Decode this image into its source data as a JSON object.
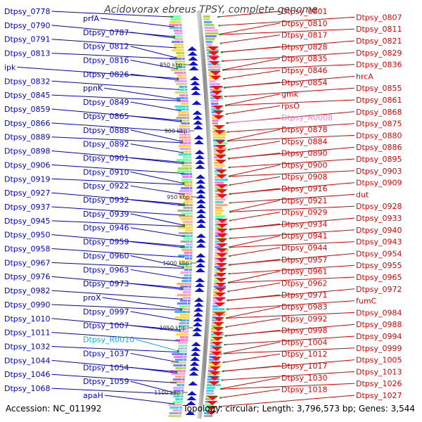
{
  "title": "Acidovorax ebreus TPSY, complete genome",
  "accession": "Accession: NC_011992",
  "summary": "Topology: circular; Length: 3,796,573 bp; Genes: 3,544",
  "colors": {
    "left_label": "#0000cc",
    "right_label": "#dd0000",
    "rna_left": "#00b8d8",
    "rna_right": "#ee88cc",
    "backbone": "#999999",
    "plus_arrow": "#1010dd",
    "minus_arrow": "#ee1111"
  },
  "ticks": [
    "850 kbp",
    "900 kbp",
    "950 kbp",
    "1000 kbp",
    "1050 kbp",
    "1100 kbp"
  ],
  "left_labels": [
    {
      "text": "Dtpsy_0778"
    },
    {
      "text": "prfA"
    },
    {
      "text": "Dtpsy_0790"
    },
    {
      "text": "Dtpsy_0787"
    },
    {
      "text": "Dtpsy_0791"
    },
    {
      "text": "Dtpsy_0812"
    },
    {
      "text": "Dtpsy_0813"
    },
    {
      "text": "Dtpsy_0816"
    },
    {
      "text": "ipk"
    },
    {
      "text": "Dtpsy_0826"
    },
    {
      "text": "Dtpsy_0832"
    },
    {
      "text": "ppnK"
    },
    {
      "text": "Dtpsy_0845"
    },
    {
      "text": "Dtpsy_0849"
    },
    {
      "text": "Dtpsy_0859"
    },
    {
      "text": "Dtpsy_0865"
    },
    {
      "text": "Dtpsy_0866"
    },
    {
      "text": "Dtpsy_0888"
    },
    {
      "text": "Dtpsy_0889"
    },
    {
      "text": "Dtpsy_0892"
    },
    {
      "text": "Dtpsy_0898"
    },
    {
      "text": "Dtpsy_0901"
    },
    {
      "text": "Dtpsy_0906"
    },
    {
      "text": "Dtpsy_0910"
    },
    {
      "text": "Dtpsy_0919"
    },
    {
      "text": "Dtpsy_0922"
    },
    {
      "text": "Dtpsy_0927"
    },
    {
      "text": "Dtpsy_0932"
    },
    {
      "text": "Dtpsy_0937"
    },
    {
      "text": "Dtpsy_0939"
    },
    {
      "text": "Dtpsy_0945"
    },
    {
      "text": "Dtpsy_0946"
    },
    {
      "text": "Dtpsy_0950"
    },
    {
      "text": "Dtpsy_0959"
    },
    {
      "text": "Dtpsy_0958"
    },
    {
      "text": "Dtpsy_0960"
    },
    {
      "text": "Dtpsy_0967"
    },
    {
      "text": "Dtpsy_0963"
    },
    {
      "text": "Dtpsy_0976"
    },
    {
      "text": "Dtpsy_0973"
    },
    {
      "text": "Dtpsy_0982"
    },
    {
      "text": "proX"
    },
    {
      "text": "Dtpsy_0990"
    },
    {
      "text": "Dtpsy_0997"
    },
    {
      "text": "Dtpsy_1010"
    },
    {
      "text": "Dtpsy_1007"
    },
    {
      "text": "Dtpsy_1011"
    },
    {
      "text": "Dtpsy_R0010",
      "rna": true
    },
    {
      "text": "Dtpsy_1032"
    },
    {
      "text": "Dtpsy_1037"
    },
    {
      "text": "Dtpsy_1044"
    },
    {
      "text": "Dtpsy_1054"
    },
    {
      "text": "Dtpsy_1046"
    },
    {
      "text": "Dtpsy_1059"
    },
    {
      "text": "Dtpsy_1068"
    },
    {
      "text": "apaH"
    }
  ],
  "right_labels": [
    {
      "text": "Dtpsy_0801"
    },
    {
      "text": "Dtpsy_0807"
    },
    {
      "text": "Dtpsy_0810"
    },
    {
      "text": "Dtpsy_0811"
    },
    {
      "text": "Dtpsy_0817"
    },
    {
      "text": "Dtpsy_0821"
    },
    {
      "text": "Dtpsy_0828"
    },
    {
      "text": "Dtpsy_0829"
    },
    {
      "text": "Dtpsy_0835"
    },
    {
      "text": "Dtpsy_0836"
    },
    {
      "text": "Dtpsy_0846"
    },
    {
      "text": "hrcA"
    },
    {
      "text": "Dtpsy_0854"
    },
    {
      "text": "Dtpsy_0855"
    },
    {
      "text": "gmk"
    },
    {
      "text": "Dtpsy_0861"
    },
    {
      "text": "rpsO"
    },
    {
      "text": "Dtpsy_0868"
    },
    {
      "text": "Dtpsy_R0008",
      "rna": true
    },
    {
      "text": "Dtpsy_0875"
    },
    {
      "text": "Dtpsy_0878"
    },
    {
      "text": "Dtpsy_0880"
    },
    {
      "text": "Dtpsy_0884"
    },
    {
      "text": "Dtpsy_0886"
    },
    {
      "text": "Dtpsy_0890"
    },
    {
      "text": "Dtpsy_0895"
    },
    {
      "text": "Dtpsy_0900"
    },
    {
      "text": "Dtpsy_0903"
    },
    {
      "text": "Dtpsy_0908"
    },
    {
      "text": "Dtpsy_0909"
    },
    {
      "text": "Dtpsy_0916"
    },
    {
      "text": "dut"
    },
    {
      "text": "Dtpsy_0921"
    },
    {
      "text": "Dtpsy_0928"
    },
    {
      "text": "Dtpsy_0929"
    },
    {
      "text": "Dtpsy_0933"
    },
    {
      "text": "Dtpsy_0934"
    },
    {
      "text": "Dtpsy_0940"
    },
    {
      "text": "Dtpsy_0941"
    },
    {
      "text": "Dtpsy_0943"
    },
    {
      "text": "Dtpsy_0944"
    },
    {
      "text": "Dtpsy_0954"
    },
    {
      "text": "Dtpsy_0957"
    },
    {
      "text": "Dtpsy_0955"
    },
    {
      "text": "Dtpsy_0961"
    },
    {
      "text": "Dtpsy_0965"
    },
    {
      "text": "Dtpsy_0962"
    },
    {
      "text": "Dtpsy_0972"
    },
    {
      "text": "Dtpsy_0971"
    },
    {
      "text": "fumC"
    },
    {
      "text": "Dtpsy_0983"
    },
    {
      "text": "Dtpsy_0984"
    },
    {
      "text": "Dtpsy_0992"
    },
    {
      "text": "Dtpsy_0988"
    },
    {
      "text": "Dtpsy_0998"
    },
    {
      "text": "Dtpsy_0994"
    },
    {
      "text": "Dtpsy_1004"
    },
    {
      "text": "Dtpsy_0999"
    },
    {
      "text": "Dtpsy_1012"
    },
    {
      "text": "Dtpsy_1005"
    },
    {
      "text": "Dtpsy_1017"
    },
    {
      "text": "Dtpsy_1013"
    },
    {
      "text": "Dtpsy_1030"
    },
    {
      "text": "Dtpsy_1026"
    },
    {
      "text": "Dtpsy_1018"
    },
    {
      "text": "Dtpsy_1027"
    }
  ]
}
